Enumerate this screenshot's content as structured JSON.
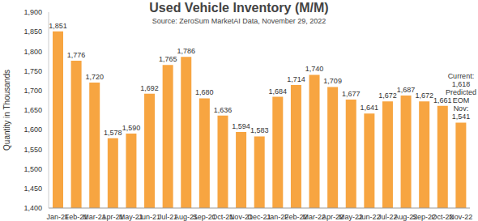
{
  "chart_data": {
    "type": "bar",
    "title": "Used Vehicle Inventory (M/M)",
    "subtitle": "Source: ZeroSum MarketAI Data, November 29, 2022",
    "y_label": "Quantity in Thousands",
    "categories": [
      "Jan-21",
      "Feb-21",
      "Mar-21",
      "Apr-21",
      "May-21",
      "Jun-21",
      "Jul-21",
      "Aug-21",
      "Sep-21",
      "Oct-21",
      "Nov-21",
      "Dec-21",
      "Jan-22",
      "Feb-22",
      "Mar-22",
      "Apr-22",
      "May-22",
      "Jun-22",
      "Jul-22",
      "Aug-22",
      "Sep-22",
      "Oct-22",
      "Nov-22"
    ],
    "values": [
      1851,
      1776,
      1720,
      1578,
      1590,
      1692,
      1765,
      1786,
      1680,
      1636,
      1594,
      1583,
      1684,
      1714,
      1740,
      1709,
      1677,
      1641,
      1672,
      1687,
      1672,
      1661,
      1618
    ],
    "value_labels": [
      "1,851",
      "1,776",
      "1,720",
      "1,578",
      "1,590",
      "1,692",
      "1,765",
      "1,786",
      "1,680",
      "1,636",
      "1,594",
      "1,583",
      "1,684",
      "1,714",
      "1,740",
      "1,709",
      "1,677",
      "1,641",
      "1,672",
      "1,687",
      "1,672",
      "1,661",
      "Current: 1,618"
    ],
    "annotation": "Predicted EOM Nov: 1,541",
    "color": "#F7A541",
    "ylim": [
      1400,
      1900
    ],
    "yticks": [
      {
        "value": 1400,
        "label": "1,400"
      },
      {
        "value": 1450,
        "label": "1,450"
      },
      {
        "value": 1500,
        "label": "1,500"
      },
      {
        "value": 1550,
        "label": "1,550"
      },
      {
        "value": 1600,
        "label": "1,600"
      },
      {
        "value": 1650,
        "label": "1,650"
      },
      {
        "value": 1700,
        "label": "1,700"
      },
      {
        "value": 1750,
        "label": "1,750"
      },
      {
        "value": 1800,
        "label": "1,800"
      },
      {
        "value": 1850,
        "label": "1,850"
      },
      {
        "value": 1900,
        "label": "1,900"
      }
    ],
    "grid": false,
    "data_labels": true
  }
}
